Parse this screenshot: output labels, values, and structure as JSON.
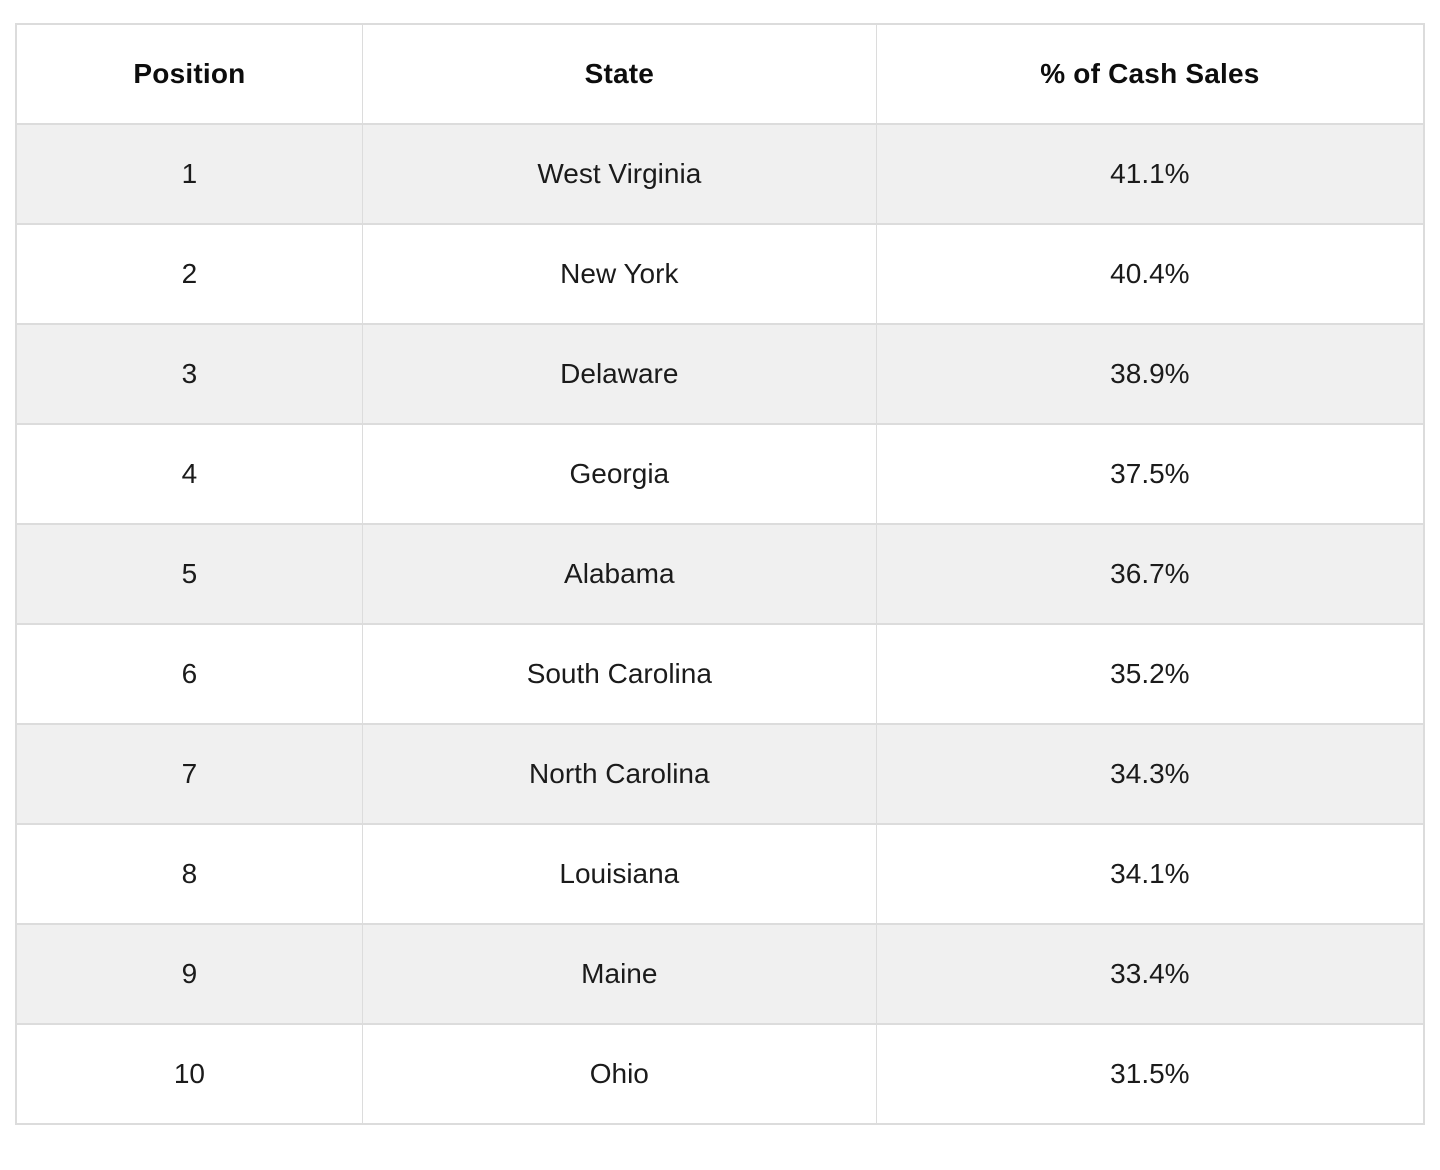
{
  "table": {
    "columns": [
      {
        "key": "position",
        "label": "Position"
      },
      {
        "key": "state",
        "label": "State"
      },
      {
        "key": "percent",
        "label": "% of Cash Sales"
      }
    ],
    "rows": [
      {
        "position": "1",
        "state": "West Virginia",
        "percent": "41.1%"
      },
      {
        "position": "2",
        "state": "New York",
        "percent": "40.4%"
      },
      {
        "position": "3",
        "state": "Delaware",
        "percent": "38.9%"
      },
      {
        "position": "4",
        "state": "Georgia",
        "percent": "37.5%"
      },
      {
        "position": "5",
        "state": "Alabama",
        "percent": "36.7%"
      },
      {
        "position": "6",
        "state": "South Carolina",
        "percent": "35.2%"
      },
      {
        "position": "7",
        "state": "North Carolina",
        "percent": "34.3%"
      },
      {
        "position": "8",
        "state": "Louisiana",
        "percent": "34.1%"
      },
      {
        "position": "9",
        "state": "Maine",
        "percent": "33.4%"
      },
      {
        "position": "10",
        "state": "Ohio",
        "percent": "31.5%"
      }
    ]
  },
  "chart_data": {
    "type": "table",
    "title": "",
    "columns": [
      "Position",
      "State",
      "% of Cash Sales"
    ],
    "rows": [
      [
        1,
        "West Virginia",
        41.1
      ],
      [
        2,
        "New York",
        40.4
      ],
      [
        3,
        "Delaware",
        38.9
      ],
      [
        4,
        "Georgia",
        37.5
      ],
      [
        5,
        "Alabama",
        36.7
      ],
      [
        6,
        "South Carolina",
        35.2
      ],
      [
        7,
        "North Carolina",
        34.3
      ],
      [
        8,
        "Louisiana",
        34.1
      ],
      [
        9,
        "Maine",
        33.4
      ],
      [
        10,
        "Ohio",
        31.5
      ]
    ],
    "value_unit": "% of cash sales",
    "layout": {
      "zebra_striping": true,
      "text_align": "center",
      "grid": true
    }
  },
  "colors": {
    "row_stripe": "#f0f0f0",
    "border": "#dcdcdc",
    "header_text": "#0d0d0d",
    "body_text": "#1b1b1b",
    "background": "#ffffff"
  }
}
